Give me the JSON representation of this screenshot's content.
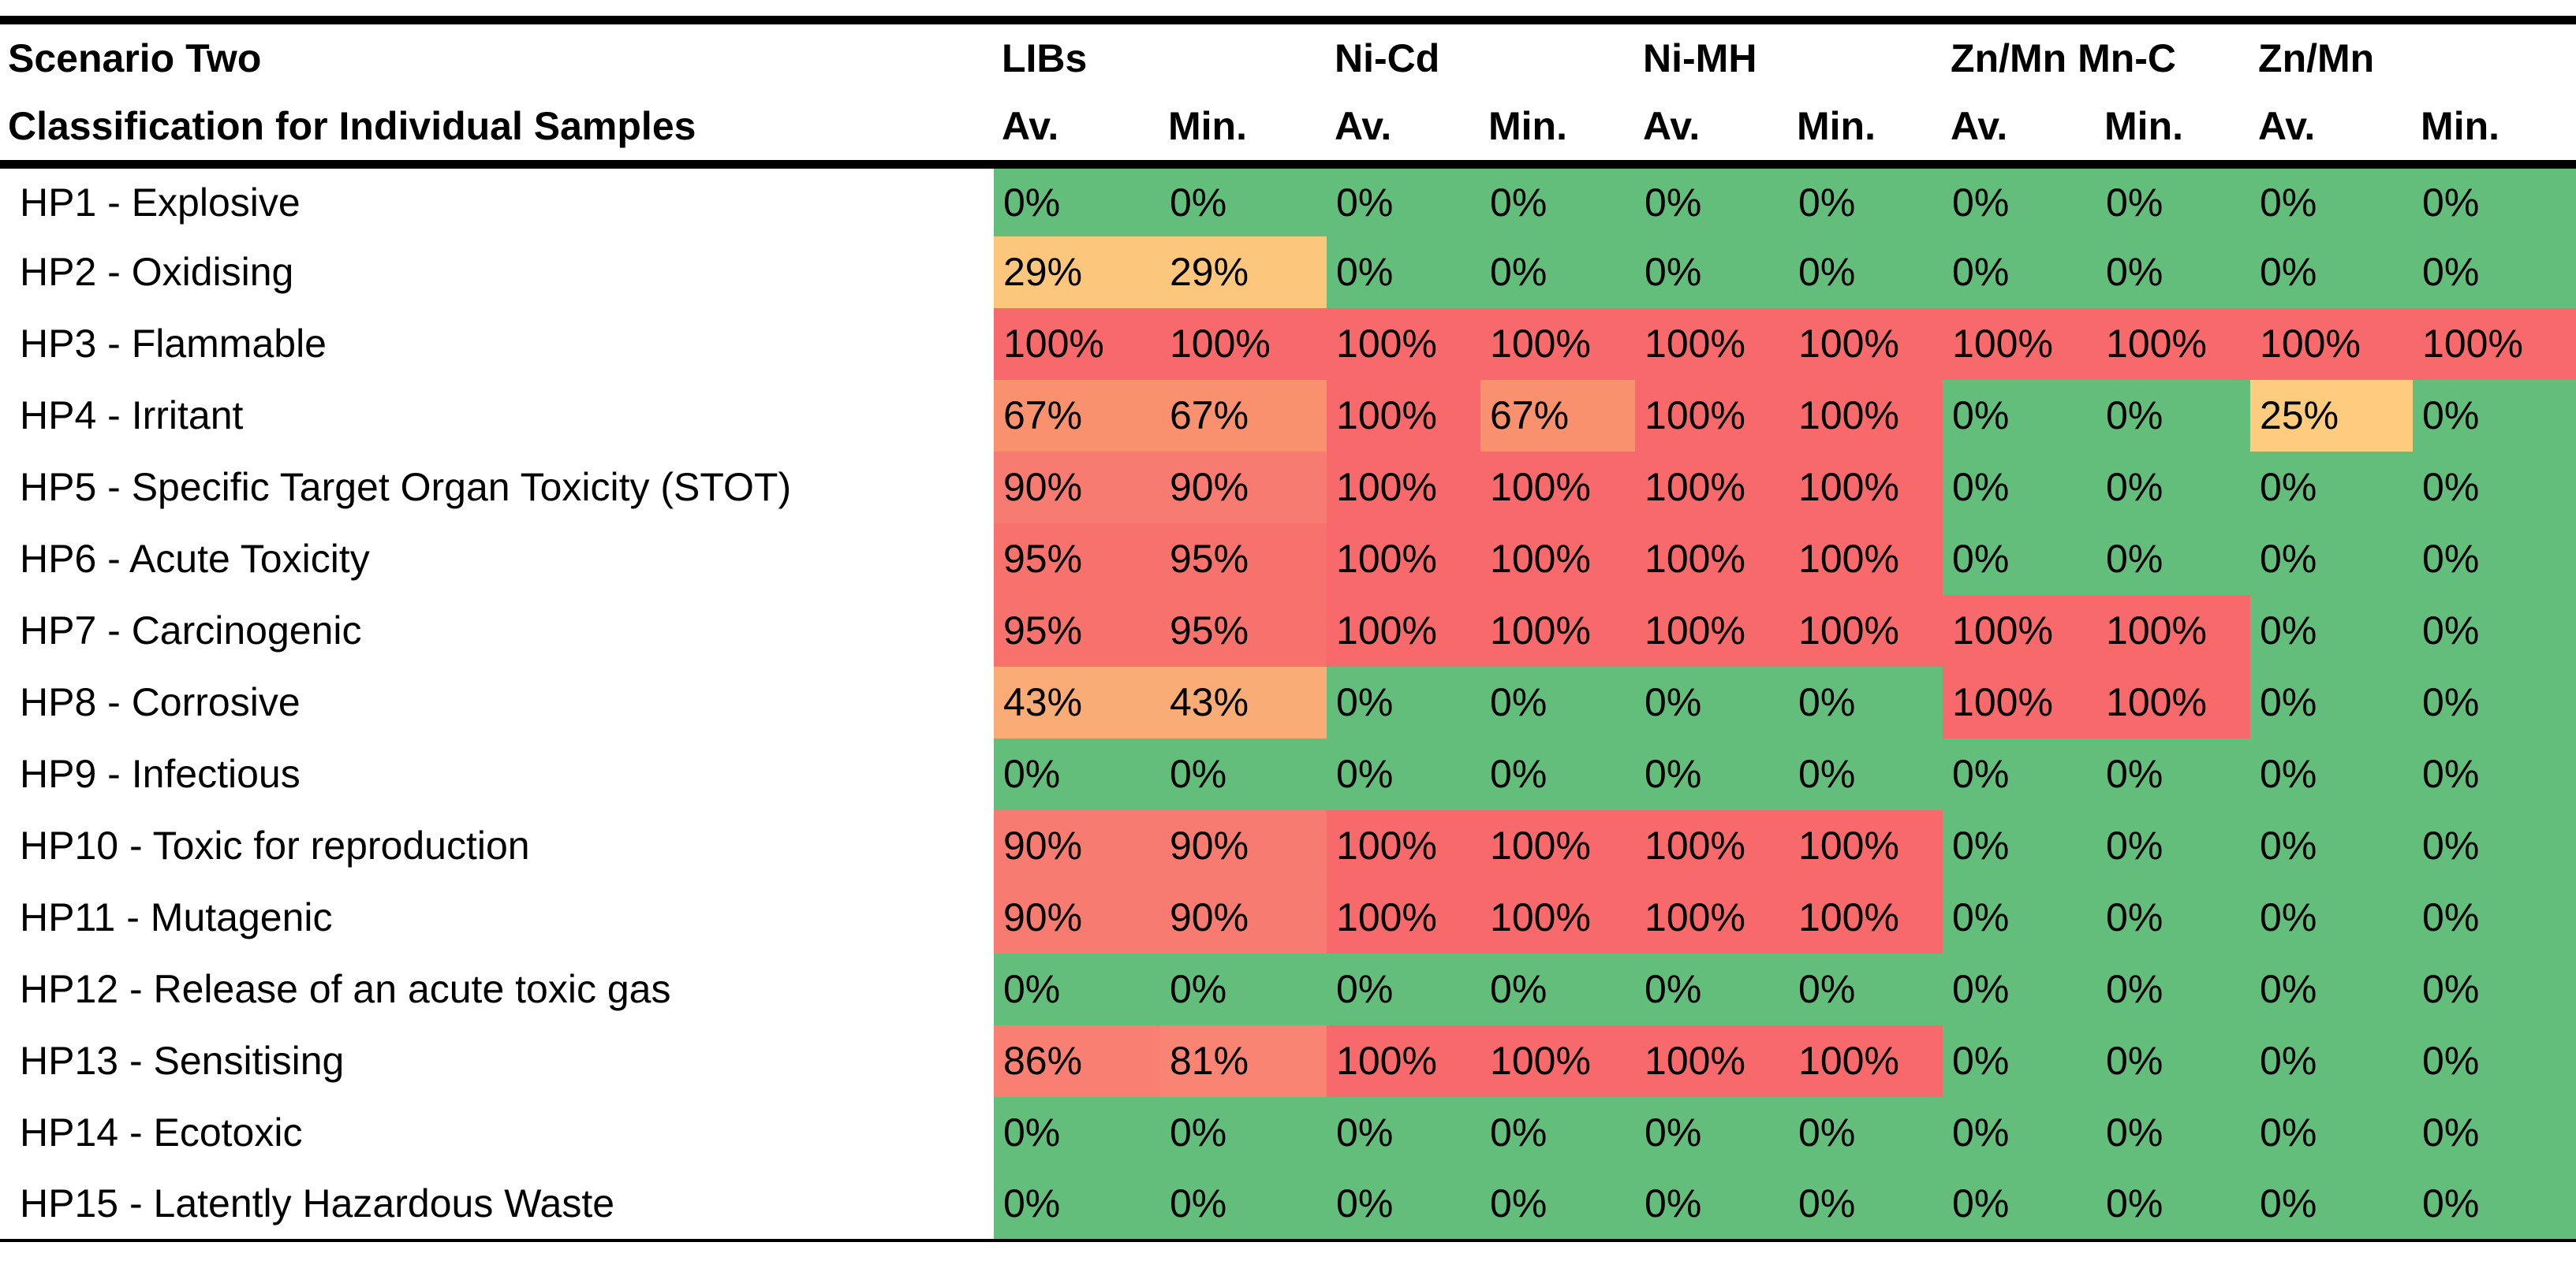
{
  "chart_data": {
    "type": "table",
    "title": "Scenario Two",
    "subtitle": "Classification for Individual Samples",
    "column_groups": [
      "LIBs",
      "Ni-Cd",
      "Ni-MH",
      "Zn/Mn Mn-C",
      "Zn/Mn"
    ],
    "subcolumns": [
      "Av.",
      "Min.",
      "Av.",
      "Min.",
      "Av.",
      "Min.",
      "Av.",
      "Min.",
      "Av.",
      "Min."
    ],
    "palette": {
      "green_0pct": "#63BE7B",
      "amber_25pct": "#FECC7E",
      "amber_29pct": "#FCC67C",
      "orange_43pct": "#FAAC76",
      "salmon_67pct": "#F9916F",
      "salmon_81pct": "#F98474",
      "salmon_86pct": "#F87F72",
      "salmon_90pct": "#F87B71",
      "salmon_95pct": "#F8726D",
      "red_100pct": "#F8696B"
    },
    "rows": [
      {
        "label": "HP1 - Explosive",
        "values": [
          "0%",
          "0%",
          "0%",
          "0%",
          "0%",
          "0%",
          "0%",
          "0%",
          "0%",
          "0%"
        ],
        "colors": [
          "#63BE7B",
          "#63BE7B",
          "#63BE7B",
          "#63BE7B",
          "#63BE7B",
          "#63BE7B",
          "#63BE7B",
          "#63BE7B",
          "#63BE7B",
          "#63BE7B"
        ]
      },
      {
        "label": "HP2 - Oxidising",
        "values": [
          "29%",
          "29%",
          "0%",
          "0%",
          "0%",
          "0%",
          "0%",
          "0%",
          "0%",
          "0%"
        ],
        "colors": [
          "#FCC67C",
          "#FCC67C",
          "#63BE7B",
          "#63BE7B",
          "#63BE7B",
          "#63BE7B",
          "#63BE7B",
          "#63BE7B",
          "#63BE7B",
          "#63BE7B"
        ]
      },
      {
        "label": "HP3 - Flammable",
        "values": [
          "100%",
          "100%",
          "100%",
          "100%",
          "100%",
          "100%",
          "100%",
          "100%",
          "100%",
          "100%"
        ],
        "colors": [
          "#F8696B",
          "#F8696B",
          "#F8696B",
          "#F8696B",
          "#F8696B",
          "#F8696B",
          "#F8696B",
          "#F8696B",
          "#F8696B",
          "#F8696B"
        ]
      },
      {
        "label": "HP4 - Irritant",
        "values": [
          "67%",
          "67%",
          "100%",
          "67%",
          "100%",
          "100%",
          "0%",
          "0%",
          "25%",
          "0%"
        ],
        "colors": [
          "#F9916F",
          "#F9916F",
          "#F8696B",
          "#F9916F",
          "#F8696B",
          "#F8696B",
          "#63BE7B",
          "#63BE7B",
          "#FECC7E",
          "#63BE7B"
        ]
      },
      {
        "label": "HP5 - Specific Target Organ Toxicity (STOT)",
        "values": [
          "90%",
          "90%",
          "100%",
          "100%",
          "100%",
          "100%",
          "0%",
          "0%",
          "0%",
          "0%"
        ],
        "colors": [
          "#F87B71",
          "#F87B71",
          "#F8696B",
          "#F8696B",
          "#F8696B",
          "#F8696B",
          "#63BE7B",
          "#63BE7B",
          "#63BE7B",
          "#63BE7B"
        ]
      },
      {
        "label": "HP6 - Acute Toxicity",
        "values": [
          "95%",
          "95%",
          "100%",
          "100%",
          "100%",
          "100%",
          "0%",
          "0%",
          "0%",
          "0%"
        ],
        "colors": [
          "#F8726D",
          "#F8726D",
          "#F8696B",
          "#F8696B",
          "#F8696B",
          "#F8696B",
          "#63BE7B",
          "#63BE7B",
          "#63BE7B",
          "#63BE7B"
        ]
      },
      {
        "label": "HP7 - Carcinogenic",
        "values": [
          "95%",
          "95%",
          "100%",
          "100%",
          "100%",
          "100%",
          "100%",
          "100%",
          "0%",
          "0%"
        ],
        "colors": [
          "#F8726D",
          "#F8726D",
          "#F8696B",
          "#F8696B",
          "#F8696B",
          "#F8696B",
          "#F8696B",
          "#F8696B",
          "#63BE7B",
          "#63BE7B"
        ]
      },
      {
        "label": "HP8 - Corrosive",
        "values": [
          "43%",
          "43%",
          "0%",
          "0%",
          "0%",
          "0%",
          "100%",
          "100%",
          "0%",
          "0%"
        ],
        "colors": [
          "#FAAC76",
          "#FAAC76",
          "#63BE7B",
          "#63BE7B",
          "#63BE7B",
          "#63BE7B",
          "#F8696B",
          "#F8696B",
          "#63BE7B",
          "#63BE7B"
        ]
      },
      {
        "label": "HP9 - Infectious",
        "values": [
          "0%",
          "0%",
          "0%",
          "0%",
          "0%",
          "0%",
          "0%",
          "0%",
          "0%",
          "0%"
        ],
        "colors": [
          "#63BE7B",
          "#63BE7B",
          "#63BE7B",
          "#63BE7B",
          "#63BE7B",
          "#63BE7B",
          "#63BE7B",
          "#63BE7B",
          "#63BE7B",
          "#63BE7B"
        ]
      },
      {
        "label": "HP10 - Toxic for reproduction",
        "values": [
          "90%",
          "90%",
          "100%",
          "100%",
          "100%",
          "100%",
          "0%",
          "0%",
          "0%",
          "0%"
        ],
        "colors": [
          "#F87B71",
          "#F87B71",
          "#F8696B",
          "#F8696B",
          "#F8696B",
          "#F8696B",
          "#63BE7B",
          "#63BE7B",
          "#63BE7B",
          "#63BE7B"
        ]
      },
      {
        "label": "HP11 - Mutagenic",
        "values": [
          "90%",
          "90%",
          "100%",
          "100%",
          "100%",
          "100%",
          "0%",
          "0%",
          "0%",
          "0%"
        ],
        "colors": [
          "#F87B71",
          "#F87B71",
          "#F8696B",
          "#F8696B",
          "#F8696B",
          "#F8696B",
          "#63BE7B",
          "#63BE7B",
          "#63BE7B",
          "#63BE7B"
        ]
      },
      {
        "label": "HP12 - Release of an acute toxic gas",
        "values": [
          "0%",
          "0%",
          "0%",
          "0%",
          "0%",
          "0%",
          "0%",
          "0%",
          "0%",
          "0%"
        ],
        "colors": [
          "#63BE7B",
          "#63BE7B",
          "#63BE7B",
          "#63BE7B",
          "#63BE7B",
          "#63BE7B",
          "#63BE7B",
          "#63BE7B",
          "#63BE7B",
          "#63BE7B"
        ]
      },
      {
        "label": "HP13 - Sensitising",
        "values": [
          "86%",
          "81%",
          "100%",
          "100%",
          "100%",
          "100%",
          "0%",
          "0%",
          "0%",
          "0%"
        ],
        "colors": [
          "#F87F72",
          "#F98474",
          "#F8696B",
          "#F8696B",
          "#F8696B",
          "#F8696B",
          "#63BE7B",
          "#63BE7B",
          "#63BE7B",
          "#63BE7B"
        ]
      },
      {
        "label": "HP14 - Ecotoxic",
        "values": [
          "0%",
          "0%",
          "0%",
          "0%",
          "0%",
          "0%",
          "0%",
          "0%",
          "0%",
          "0%"
        ],
        "colors": [
          "#63BE7B",
          "#63BE7B",
          "#63BE7B",
          "#63BE7B",
          "#63BE7B",
          "#63BE7B",
          "#63BE7B",
          "#63BE7B",
          "#63BE7B",
          "#63BE7B"
        ]
      },
      {
        "label": "HP15 - Latently Hazardous Waste",
        "values": [
          "0%",
          "0%",
          "0%",
          "0%",
          "0%",
          "0%",
          "0%",
          "0%",
          "0%",
          "0%"
        ],
        "colors": [
          "#63BE7B",
          "#63BE7B",
          "#63BE7B",
          "#63BE7B",
          "#63BE7B",
          "#63BE7B",
          "#63BE7B",
          "#63BE7B",
          "#63BE7B",
          "#63BE7B"
        ]
      }
    ]
  }
}
